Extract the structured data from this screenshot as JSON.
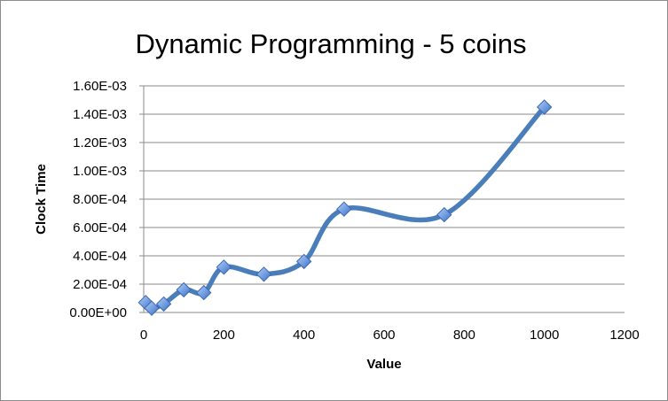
{
  "chart_data": {
    "type": "line",
    "title": "Dynamic Programming - 5 coins",
    "xlabel": "Value",
    "ylabel": "Clock Time",
    "xlim": [
      0,
      1200
    ],
    "ylim": [
      0,
      0.0016
    ],
    "x_ticks": [
      "0",
      "200",
      "400",
      "600",
      "800",
      "1000",
      "1200"
    ],
    "x_tick_values": [
      0,
      200,
      400,
      600,
      800,
      1000,
      1200
    ],
    "y_ticks": [
      "0.00E+00",
      "2.00E-04",
      "4.00E-04",
      "6.00E-04",
      "8.00E-04",
      "1.00E-03",
      "1.20E-03",
      "1.40E-03",
      "1.60E-03"
    ],
    "y_tick_values": [
      0,
      0.0002,
      0.0004,
      0.0006,
      0.0008,
      0.001,
      0.0012,
      0.0014,
      0.0016
    ],
    "grid": "horizontal",
    "legend": "none",
    "line_color": "#4a7ebb",
    "marker_color": "#6f9be0",
    "marker_shape": "diamond",
    "series": [
      {
        "x": [
          5,
          20,
          50,
          100,
          150,
          200,
          300,
          400,
          500,
          750,
          1000
        ],
        "y": [
          7e-05,
          3e-05,
          6e-05,
          0.00016,
          0.00014,
          0.00032,
          0.00027,
          0.00036,
          0.00073,
          0.00069,
          0.00145
        ]
      }
    ]
  }
}
